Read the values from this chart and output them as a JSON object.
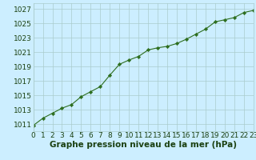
{
  "x": [
    0,
    1,
    2,
    3,
    4,
    5,
    6,
    7,
    8,
    9,
    10,
    11,
    12,
    13,
    14,
    15,
    16,
    17,
    18,
    19,
    20,
    21,
    22,
    23
  ],
  "y": [
    1010.8,
    1011.8,
    1012.5,
    1013.2,
    1013.7,
    1014.8,
    1015.5,
    1016.2,
    1017.8,
    1019.3,
    1019.9,
    1020.4,
    1021.3,
    1021.6,
    1021.8,
    1022.2,
    1022.8,
    1023.5,
    1024.2,
    1025.2,
    1025.5,
    1025.8,
    1026.5,
    1026.8
  ],
  "line_color": "#2d6e1e",
  "marker_color": "#2d6e1e",
  "bg_color": "#cceeff",
  "grid_color": "#aacccc",
  "xlabel": "Graphe pression niveau de la mer (hPa)",
  "xlabel_color": "#1a4010",
  "xlabel_fontsize": 7.5,
  "tick_label_color": "#1a4010",
  "tick_fontsize": 6.5,
  "ylim": [
    1010.0,
    1027.8
  ],
  "yticks": [
    1011,
    1013,
    1015,
    1017,
    1019,
    1021,
    1023,
    1025,
    1027
  ],
  "xlim": [
    0,
    23
  ],
  "xticks": [
    0,
    1,
    2,
    3,
    4,
    5,
    6,
    7,
    8,
    9,
    10,
    11,
    12,
    13,
    14,
    15,
    16,
    17,
    18,
    19,
    20,
    21,
    22,
    23
  ]
}
